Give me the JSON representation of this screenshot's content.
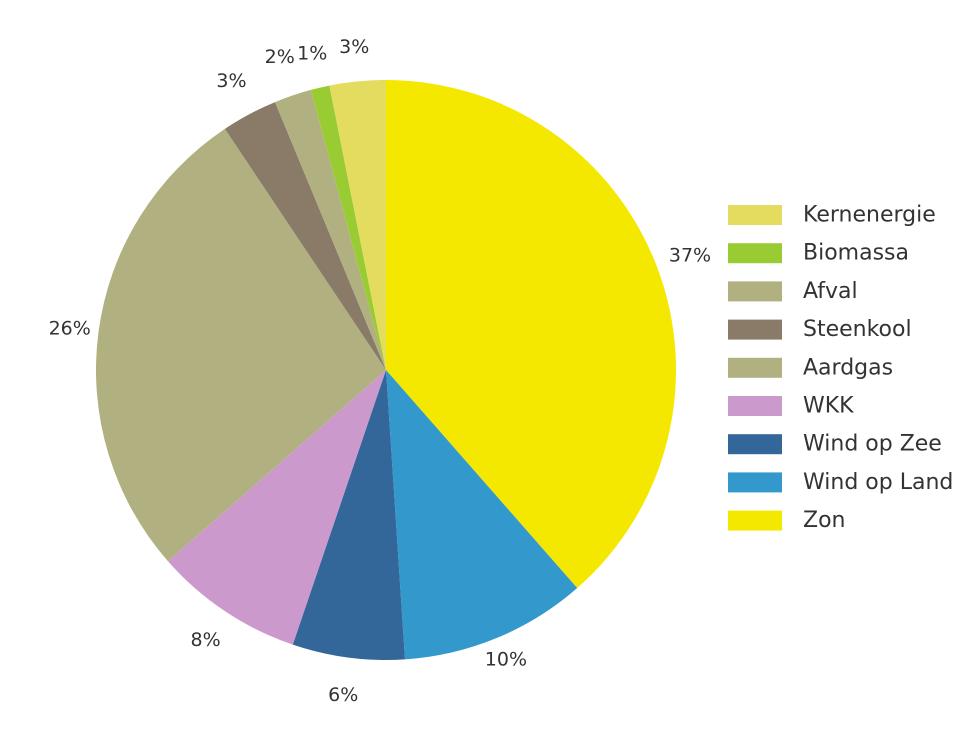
{
  "chart_data": {
    "type": "pie",
    "slices": [
      {
        "name": "Zon",
        "value": 37,
        "label": "37%",
        "color": "#f5e800"
      },
      {
        "name": "Wind op Land",
        "value": 10,
        "label": "10%",
        "color": "#3399cc"
      },
      {
        "name": "Wind op Zee",
        "value": 6,
        "label": "6%",
        "color": "#336699"
      },
      {
        "name": "WKK",
        "value": 8,
        "label": "8%",
        "color": "#cc99cc"
      },
      {
        "name": "Aardgas",
        "value": 26,
        "label": "26%",
        "color": "#b1b080"
      },
      {
        "name": "Steenkool",
        "value": 3,
        "label": "3%",
        "color": "#8a7b69"
      },
      {
        "name": "Afval",
        "value": 2,
        "label": "2%",
        "color": "#b1b080"
      },
      {
        "name": "Biomassa",
        "value": 1,
        "label": "1%",
        "color": "#99cc33"
      },
      {
        "name": "Kernenergie",
        "value": 3,
        "label": "3%",
        "color": "#e3dc5f"
      }
    ],
    "legend": {
      "placement": "right",
      "order": [
        "Kernenergie",
        "Biomassa",
        "Afval",
        "Steenkool",
        "Aardgas",
        "WKK",
        "Wind op Zee",
        "Wind op Land",
        "Zon"
      ]
    }
  }
}
